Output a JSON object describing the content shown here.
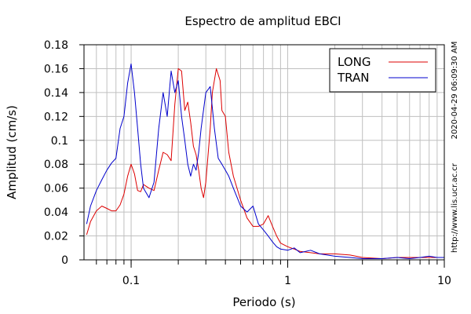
{
  "chart_data": {
    "type": "line",
    "title": "Espectro de amplitud EBCI",
    "xlabel": "Periodo (s)",
    "ylabel": "Amplitud (cm/s)",
    "x_scale": "log",
    "xlim": [
      0.05,
      10
    ],
    "ylim": [
      0,
      0.18
    ],
    "grid": true,
    "legend_position": "top-right",
    "x_tick_labels": [
      "0.1",
      "1",
      "10"
    ],
    "y_tick_labels": [
      "0",
      "0.02",
      "0.04",
      "0.06",
      "0.08",
      "0.1",
      "0.12",
      "0.14",
      "0.16",
      "0.18"
    ],
    "side_text_top": "2020-04-29 06:09:30 AM",
    "side_text_bottom": "http://www.lis.ucr.ac.cr",
    "colors": {
      "grid": "#c0c0c0",
      "frame": "#000000"
    },
    "series": [
      {
        "name": "LONG",
        "color": "#dd0000",
        "points": [
          [
            0.052,
            0.021
          ],
          [
            0.055,
            0.032
          ],
          [
            0.06,
            0.041
          ],
          [
            0.065,
            0.045
          ],
          [
            0.07,
            0.043
          ],
          [
            0.075,
            0.041
          ],
          [
            0.08,
            0.041
          ],
          [
            0.085,
            0.046
          ],
          [
            0.09,
            0.055
          ],
          [
            0.095,
            0.07
          ],
          [
            0.1,
            0.08
          ],
          [
            0.105,
            0.072
          ],
          [
            0.11,
            0.058
          ],
          [
            0.115,
            0.057
          ],
          [
            0.12,
            0.063
          ],
          [
            0.13,
            0.06
          ],
          [
            0.14,
            0.058
          ],
          [
            0.15,
            0.075
          ],
          [
            0.16,
            0.09
          ],
          [
            0.17,
            0.088
          ],
          [
            0.18,
            0.083
          ],
          [
            0.19,
            0.13
          ],
          [
            0.2,
            0.16
          ],
          [
            0.21,
            0.158
          ],
          [
            0.22,
            0.125
          ],
          [
            0.23,
            0.132
          ],
          [
            0.24,
            0.115
          ],
          [
            0.25,
            0.095
          ],
          [
            0.26,
            0.088
          ],
          [
            0.27,
            0.075
          ],
          [
            0.28,
            0.06
          ],
          [
            0.29,
            0.052
          ],
          [
            0.3,
            0.065
          ],
          [
            0.32,
            0.11
          ],
          [
            0.33,
            0.14
          ],
          [
            0.35,
            0.16
          ],
          [
            0.37,
            0.15
          ],
          [
            0.38,
            0.125
          ],
          [
            0.4,
            0.12
          ],
          [
            0.42,
            0.09
          ],
          [
            0.45,
            0.07
          ],
          [
            0.5,
            0.05
          ],
          [
            0.55,
            0.035
          ],
          [
            0.6,
            0.028
          ],
          [
            0.65,
            0.028
          ],
          [
            0.7,
            0.03
          ],
          [
            0.75,
            0.037
          ],
          [
            0.8,
            0.028
          ],
          [
            0.85,
            0.02
          ],
          [
            0.9,
            0.014
          ],
          [
            1.0,
            0.011
          ],
          [
            1.1,
            0.009
          ],
          [
            1.2,
            0.007
          ],
          [
            1.4,
            0.006
          ],
          [
            1.6,
            0.005
          ],
          [
            2.0,
            0.005
          ],
          [
            2.5,
            0.004
          ],
          [
            3.0,
            0.002
          ],
          [
            4.0,
            0.001
          ],
          [
            5.0,
            0.002
          ],
          [
            6.0,
            0.002
          ],
          [
            7.0,
            0.002
          ],
          [
            8.0,
            0.002
          ],
          [
            9.0,
            0.002
          ],
          [
            10.0,
            0.002
          ]
        ]
      },
      {
        "name": "TRAN",
        "color": "#0000cc",
        "points": [
          [
            0.052,
            0.03
          ],
          [
            0.055,
            0.045
          ],
          [
            0.06,
            0.058
          ],
          [
            0.065,
            0.067
          ],
          [
            0.07,
            0.075
          ],
          [
            0.075,
            0.081
          ],
          [
            0.08,
            0.085
          ],
          [
            0.085,
            0.11
          ],
          [
            0.09,
            0.12
          ],
          [
            0.095,
            0.148
          ],
          [
            0.1,
            0.164
          ],
          [
            0.105,
            0.14
          ],
          [
            0.11,
            0.11
          ],
          [
            0.115,
            0.08
          ],
          [
            0.12,
            0.06
          ],
          [
            0.13,
            0.052
          ],
          [
            0.14,
            0.065
          ],
          [
            0.15,
            0.11
          ],
          [
            0.16,
            0.14
          ],
          [
            0.17,
            0.12
          ],
          [
            0.18,
            0.158
          ],
          [
            0.19,
            0.14
          ],
          [
            0.2,
            0.15
          ],
          [
            0.21,
            0.12
          ],
          [
            0.22,
            0.1
          ],
          [
            0.23,
            0.08
          ],
          [
            0.24,
            0.07
          ],
          [
            0.25,
            0.08
          ],
          [
            0.26,
            0.075
          ],
          [
            0.27,
            0.09
          ],
          [
            0.28,
            0.11
          ],
          [
            0.3,
            0.14
          ],
          [
            0.32,
            0.145
          ],
          [
            0.34,
            0.11
          ],
          [
            0.36,
            0.085
          ],
          [
            0.38,
            0.08
          ],
          [
            0.4,
            0.075
          ],
          [
            0.42,
            0.07
          ],
          [
            0.45,
            0.06
          ],
          [
            0.5,
            0.045
          ],
          [
            0.55,
            0.04
          ],
          [
            0.6,
            0.045
          ],
          [
            0.65,
            0.03
          ],
          [
            0.7,
            0.025
          ],
          [
            0.75,
            0.02
          ],
          [
            0.8,
            0.015
          ],
          [
            0.85,
            0.011
          ],
          [
            0.9,
            0.009
          ],
          [
            1.0,
            0.008
          ],
          [
            1.1,
            0.01
          ],
          [
            1.2,
            0.006
          ],
          [
            1.4,
            0.008
          ],
          [
            1.6,
            0.005
          ],
          [
            2.0,
            0.003
          ],
          [
            2.5,
            0.002
          ],
          [
            3.0,
            0.001
          ],
          [
            4.0,
            0.001
          ],
          [
            5.0,
            0.002
          ],
          [
            6.0,
            0.001
          ],
          [
            7.0,
            0.002
          ],
          [
            8.0,
            0.003
          ],
          [
            9.0,
            0.002
          ],
          [
            10.0,
            0.002
          ]
        ]
      }
    ]
  }
}
